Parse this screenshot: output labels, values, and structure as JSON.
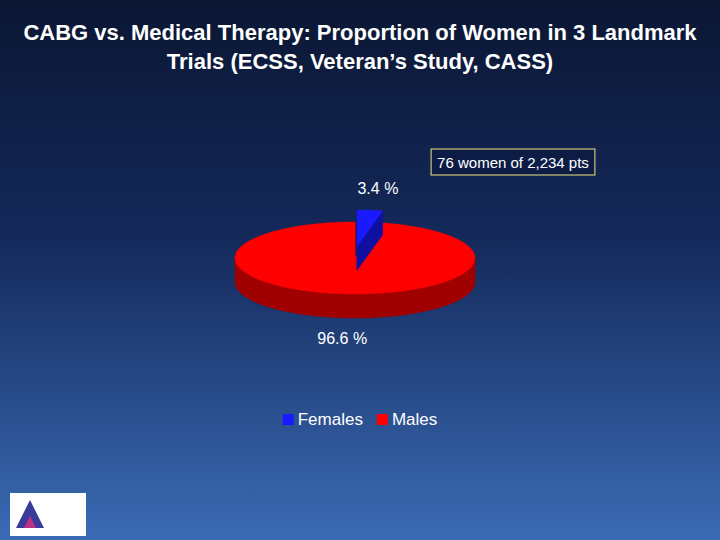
{
  "chart_data": {
    "type": "pie",
    "title": "CABG vs. Medical Therapy: Proportion of Women in 3 Landmark Trials (ECSS, Veteran’s Study, CASS)",
    "annotation": "76 women of 2,234 pts",
    "categories": [
      "Females",
      "Males"
    ],
    "values": [
      3.4,
      96.6
    ],
    "value_labels": [
      "3.4 %",
      "96.6 %"
    ],
    "colors": [
      "#1a1aff",
      "#ff0000"
    ],
    "data_labels": true,
    "legend": "bottom"
  }
}
